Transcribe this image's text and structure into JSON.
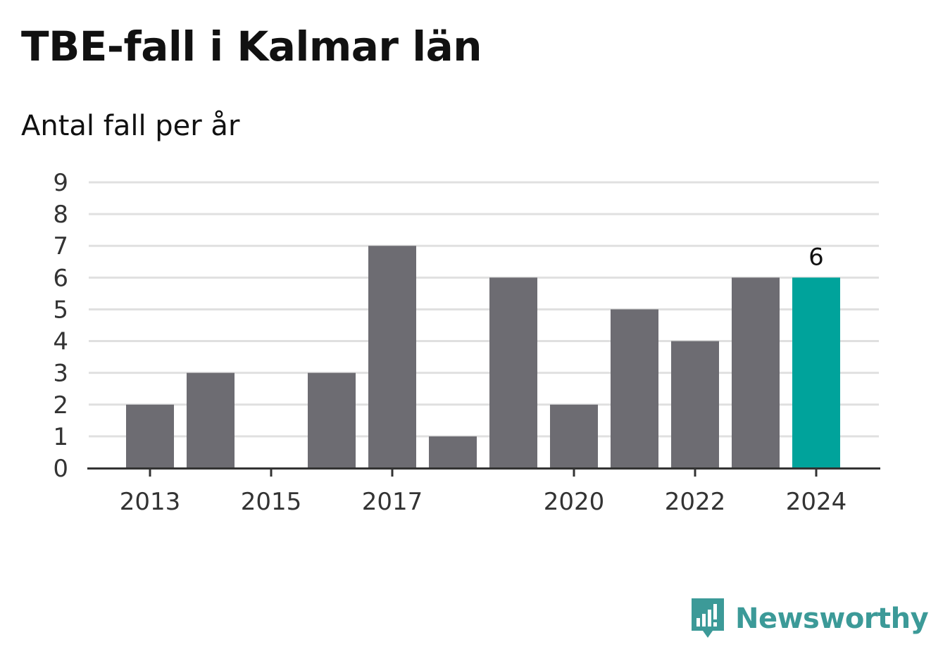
{
  "title": "TBE-fall i Kalmar län",
  "subtitle": "Antal fall per år",
  "brand": {
    "name": "Newsworthy",
    "icon": "newsworthy-logo-icon"
  },
  "colors": {
    "bar": "#6d6c72",
    "highlight": "#00a39b",
    "grid": "#e0e0e0",
    "axis": "#333333"
  },
  "chart_data": {
    "type": "bar",
    "categories": [
      "2013",
      "2014",
      "2015",
      "2016",
      "2017",
      "2018",
      "2019",
      "2020",
      "2021",
      "2022",
      "2023",
      "2024"
    ],
    "values": [
      2,
      3,
      0,
      3,
      7,
      1,
      6,
      2,
      5,
      4,
      6,
      6
    ],
    "x_tick_labels": [
      "2013",
      "",
      "2015",
      "",
      "2017",
      "",
      "",
      "2020",
      "",
      "2022",
      "",
      "2024"
    ],
    "y_ticks": [
      0,
      1,
      2,
      3,
      4,
      5,
      6,
      7,
      8,
      9
    ],
    "ylim": [
      0,
      9
    ],
    "highlight_category": "2024",
    "data_labels": [
      {
        "category": "2024",
        "text": "6"
      }
    ],
    "grid": true,
    "legend": "none"
  }
}
